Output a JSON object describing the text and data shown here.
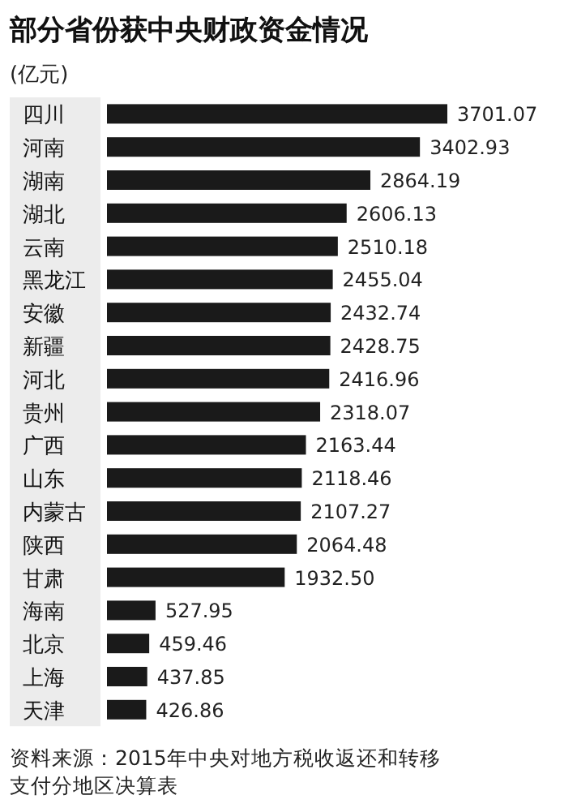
{
  "chart_data": {
    "type": "bar",
    "orientation": "horizontal",
    "title": "部分省份获中央财政资金情况",
    "subtitle": "(亿元)",
    "categories": [
      "四川",
      "河南",
      "湖南",
      "湖北",
      "云南",
      "黑龙江",
      "安徽",
      "新疆",
      "河北",
      "贵州",
      "广西",
      "山东",
      "内蒙古",
      "陕西",
      "甘肃",
      "海南",
      "北京",
      "上海",
      "天津"
    ],
    "values": [
      3701.07,
      3402.93,
      2864.19,
      2606.13,
      2510.18,
      2455.04,
      2432.74,
      2428.75,
      2416.96,
      2318.07,
      2163.44,
      2118.46,
      2107.27,
      2064.48,
      1932.5,
      527.95,
      459.46,
      437.85,
      426.86
    ],
    "value_labels": [
      "3701.07",
      "3402.93",
      "2864.19",
      "2606.13",
      "2510.18",
      "2455.04",
      "2432.74",
      "2428.75",
      "2416.96",
      "2318.07",
      "2163.44",
      "2118.46",
      "2107.27",
      "2064.48",
      "1932.50",
      "527.95",
      "459.46",
      "437.85",
      "426.86"
    ],
    "color": "#1a1a1a",
    "annotations": [
      "资料来源：2015年中央对地方税收返还和转移支付分地区决算表"
    ]
  }
}
